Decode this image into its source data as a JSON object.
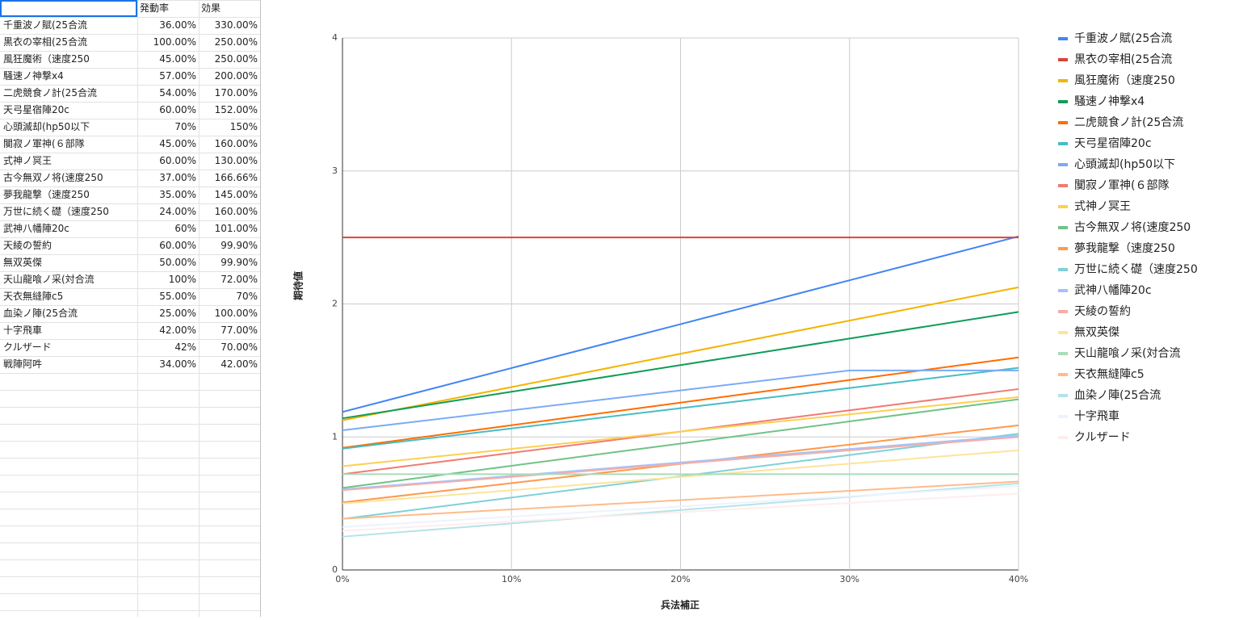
{
  "table": {
    "header": [
      "発動率",
      "効果"
    ],
    "rows": [
      [
        "千重波ノ賦(25合流",
        "36.00%",
        "330.00%"
      ],
      [
        "黒衣の宰相(25合流",
        "100.00%",
        "250.00%"
      ],
      [
        "風狂魔術（速度250",
        "45.00%",
        "250.00%"
      ],
      [
        "騒速ノ神撃x4",
        "57.00%",
        "200.00%"
      ],
      [
        "二虎競食ノ計(25合流",
        "54.00%",
        "170.00%"
      ],
      [
        "天弓星宿陣20c",
        "60.00%",
        "152.00%"
      ],
      [
        "心頭滅却(hp50以下",
        "70%",
        "150%"
      ],
      [
        "闃寂ノ軍神(６部隊",
        "45.00%",
        "160.00%"
      ],
      [
        "式神ノ冥王",
        "60.00%",
        "130.00%"
      ],
      [
        "古今無双ノ将(速度250",
        "37.00%",
        "166.66%"
      ],
      [
        "夢我龍撃（速度250",
        "35.00%",
        "145.00%"
      ],
      [
        "万世に続く礎（速度250",
        "24.00%",
        "160.00%"
      ],
      [
        "武神八幡陣20c",
        "60%",
        "101.00%"
      ],
      [
        "天綾の誓約",
        "60.00%",
        "99.90%"
      ],
      [
        "無双英傑",
        "50.00%",
        "99.90%"
      ],
      [
        "天山龍喰ノ采(対合流",
        "100%",
        "72.00%"
      ],
      [
        "天衣無縫陣c5",
        "55.00%",
        "70%"
      ],
      [
        "血染ノ陣(25合流",
        "25.00%",
        "100.00%"
      ],
      [
        "十字飛車",
        "42.00%",
        "77.00%"
      ],
      [
        "クルザード",
        "42%",
        "70.00%"
      ],
      [
        "戦陣阿吽",
        "34.00%",
        "42.00%"
      ]
    ]
  },
  "chart_data": {
    "type": "line",
    "x_label": "兵法補正",
    "y_label": "期待値",
    "categories": [
      "0%",
      "10%",
      "20%",
      "30%",
      "40%"
    ],
    "ylim": [
      0,
      4
    ],
    "yticks": [
      0,
      1,
      2,
      3,
      4
    ],
    "grid": true,
    "legend": "right",
    "series": [
      {
        "name": "千重波ノ賦(25合流",
        "color": "#4285f4",
        "values": [
          1.188,
          1.518,
          1.848,
          2.178,
          2.508
        ]
      },
      {
        "name": "黒衣の宰相(25合流",
        "color": "#db4437",
        "values": [
          2.5,
          2.5,
          2.5,
          2.5,
          2.5
        ]
      },
      {
        "name": "風狂魔術（速度250",
        "color": "#f4b400",
        "values": [
          1.125,
          1.375,
          1.625,
          1.875,
          2.125
        ]
      },
      {
        "name": "騒速ノ神撃x4",
        "color": "#0f9d58",
        "values": [
          1.14,
          1.34,
          1.54,
          1.74,
          1.94
        ]
      },
      {
        "name": "二虎競食ノ計(25合流",
        "color": "#ff6d00",
        "values": [
          0.918,
          1.088,
          1.258,
          1.428,
          1.598
        ]
      },
      {
        "name": "天弓星宿陣20c",
        "color": "#46bdc6",
        "values": [
          0.912,
          1.064,
          1.216,
          1.368,
          1.52
        ]
      },
      {
        "name": "心頭滅却(hp50以下",
        "color": "#7baaf7",
        "values": [
          1.05,
          1.2,
          1.35,
          1.5,
          1.5
        ]
      },
      {
        "name": "闃寂ノ軍神(６部隊",
        "color": "#f07b72",
        "values": [
          0.72,
          0.88,
          1.04,
          1.2,
          1.36
        ]
      },
      {
        "name": "式神ノ冥王",
        "color": "#fcd04f",
        "values": [
          0.78,
          0.91,
          1.04,
          1.17,
          1.3
        ]
      },
      {
        "name": "古今無双ノ将(速度250",
        "color": "#71c287",
        "values": [
          0.6166,
          0.7833,
          0.95,
          1.1166,
          1.2833
        ]
      },
      {
        "name": "夢我龍撃（速度250",
        "color": "#ff994d",
        "values": [
          0.5075,
          0.6525,
          0.7975,
          0.9425,
          1.0875
        ]
      },
      {
        "name": "万世に続く礎（速度250",
        "color": "#7ed1d7",
        "values": [
          0.384,
          0.544,
          0.704,
          0.864,
          1.024
        ]
      },
      {
        "name": "武神八幡陣20c",
        "color": "#a0c3ff",
        "values": [
          0.606,
          0.707,
          0.808,
          0.909,
          1.01
        ]
      },
      {
        "name": "天綾の誓約",
        "color": "#f6aea9",
        "values": [
          0.5994,
          0.6993,
          0.7992,
          0.8991,
          0.999
        ]
      },
      {
        "name": "無双英傑",
        "color": "#fde49b",
        "values": [
          0.4995,
          0.5994,
          0.6993,
          0.7992,
          0.8991
        ]
      },
      {
        "name": "天山龍喰ノ采(対合流",
        "color": "#aadcbb",
        "values": [
          0.72,
          0.72,
          0.72,
          0.72,
          0.72
        ]
      },
      {
        "name": "天衣無縫陣c5",
        "color": "#ffbb8c",
        "values": [
          0.385,
          0.455,
          0.525,
          0.595,
          0.665
        ]
      },
      {
        "name": "血染ノ陣(25合流",
        "color": "#b5e3e8",
        "values": [
          0.25,
          0.35,
          0.45,
          0.55,
          0.65
        ]
      },
      {
        "name": "十字飛車",
        "color": "#ecf3fe",
        "values": [
          0.3234,
          0.4004,
          0.4774,
          0.5544,
          0.6314
        ]
      },
      {
        "name": "クルザード",
        "color": "#fdeeed",
        "values": [
          0.294,
          0.364,
          0.434,
          0.504,
          0.574
        ]
      }
    ]
  }
}
